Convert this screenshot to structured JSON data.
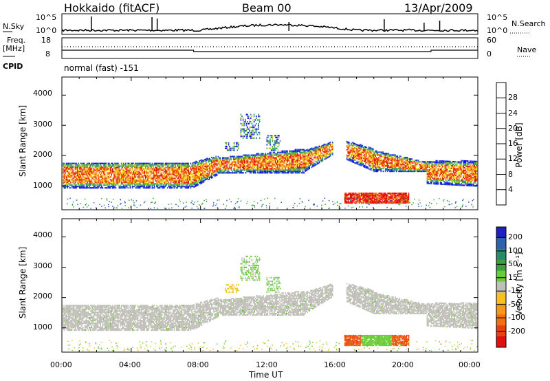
{
  "header": {
    "station": "Hokkaido (fitACF)",
    "beam": "Beam 00",
    "date": "13/Apr/2009"
  },
  "top_panels": {
    "nsky_label": "N.Sky",
    "nsearch_label": "N.Search",
    "nsky_ticks": [
      "10^5",
      "10^0"
    ],
    "nsearch_ticks": [
      "10^5",
      "10^0"
    ],
    "freq_label": "Freq.",
    "freq_unit": "[MHz]",
    "freq_ticks": [
      "18",
      "8"
    ],
    "nave_label": "Nave",
    "nave_ticks": [
      "60",
      "0"
    ],
    "cpid_label": "CPID",
    "cpid_value": "normal (fast) -151"
  },
  "chart_data": [
    {
      "type": "heatmap",
      "name": "power",
      "ylabel": "Slant Range [km]",
      "yticks": [
        1000,
        2000,
        3000,
        4000
      ],
      "ylim": [
        200,
        4600
      ],
      "xlim_hours": [
        0,
        24
      ],
      "colorbar": {
        "label": "Power [dB]",
        "ticks": [
          "4",
          "8",
          "12",
          "16",
          "20",
          "24",
          "28"
        ],
        "colors": [
          "#1010e0",
          "#2a55c8",
          "#2f8a8a",
          "#3aa83a",
          "#9ccd2a",
          "#f2e21e",
          "#f5b21c",
          "#f07a14",
          "#e84010",
          "#e01010"
        ]
      }
    },
    {
      "type": "heatmap",
      "name": "velocity",
      "ylabel": "Slant Range [km]",
      "yticks": [
        1000,
        2000,
        3000,
        4000
      ],
      "ylim": [
        200,
        4600
      ],
      "xlim_hours": [
        0,
        24
      ],
      "xlabel": "Time UT",
      "xticks": [
        "00:00",
        "04:00",
        "08:00",
        "12:00",
        "16:00",
        "20:00",
        "00:00"
      ],
      "colorbar": {
        "label": "Velocity [m s⁻¹]",
        "ticks": [
          "200",
          "100",
          "50",
          "15",
          "-15",
          "-50",
          "-100",
          "-200"
        ],
        "colors": [
          "#2020c0",
          "#3060b0",
          "#2a8a6a",
          "#3aa040",
          "#6acc3a",
          "#c0c0b8",
          "#f5c020",
          "#f59a18",
          "#f07014",
          "#e84010",
          "#e01010"
        ]
      }
    }
  ]
}
